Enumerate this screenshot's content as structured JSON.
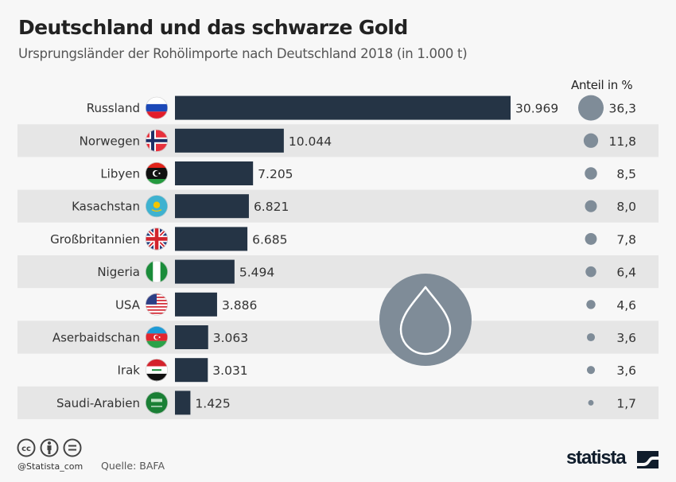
{
  "header": {
    "title": "Deutschland und das schwarze Gold",
    "subtitle": "Ursprungsländer der Rohölimporte nach Deutschland 2018 (in 1.000 t)",
    "share_column_label": "Anteil in %"
  },
  "colors": {
    "bar": "#253445",
    "bubble": "#7f8c98",
    "stripe": "#e6e6e6",
    "background": "#f7f7f7",
    "decor_circle": "#7f8c98"
  },
  "chart_data": {
    "type": "bar",
    "orientation": "horizontal",
    "title": "Deutschland und das schwarze Gold",
    "subtitle": "Ursprungsländer der Rohölimporte nach Deutschland 2018 (in 1.000 t)",
    "xlabel": "",
    "ylabel": "",
    "unit": "1.000 t",
    "categories": [
      "Russland",
      "Norwegen",
      "Libyen",
      "Kasachstan",
      "Großbritannien",
      "Nigeria",
      "USA",
      "Aserbaidschan",
      "Irak",
      "Saudi-Arabien"
    ],
    "series": [
      {
        "name": "Rohölimporte (in 1.000 t)",
        "values": [
          30969,
          10044,
          7205,
          6821,
          6685,
          5494,
          3886,
          3063,
          3031,
          1425
        ],
        "labels": [
          "30.969",
          "10.044",
          "7.205",
          "6.821",
          "6.685",
          "5.494",
          "3.886",
          "3.063",
          "3.031",
          "1.425"
        ]
      },
      {
        "name": "Anteil in %",
        "type": "bubble",
        "values": [
          36.3,
          11.8,
          8.5,
          8.0,
          7.8,
          6.4,
          4.6,
          3.6,
          3.6,
          1.7
        ],
        "labels": [
          "36,3",
          "11,8",
          "8,5",
          "8,0",
          "7,8",
          "6,4",
          "4,6",
          "3,6",
          "3,6",
          "1,7"
        ]
      }
    ],
    "flags": [
      "russia",
      "norway",
      "libya",
      "kazakhstan",
      "united-kingdom",
      "nigeria",
      "usa",
      "azerbaijan",
      "iraq",
      "saudi-arabia"
    ],
    "xlim": [
      0,
      30969
    ],
    "grid": false,
    "legend": "none",
    "alternating_row_stripes": true
  },
  "decoration": {
    "icon": "oil-drop-icon"
  },
  "footer": {
    "license_icons": [
      "cc-icon",
      "by-icon",
      "nd-icon"
    ],
    "handle": "@Statista_com",
    "source": "Quelle: BAFA",
    "logo": "statista"
  }
}
